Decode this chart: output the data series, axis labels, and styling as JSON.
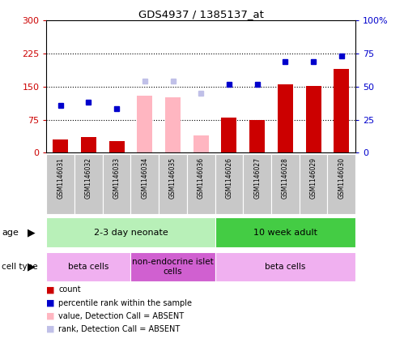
{
  "title": "GDS4937 / 1385137_at",
  "samples": [
    "GSM1146031",
    "GSM1146032",
    "GSM1146033",
    "GSM1146034",
    "GSM1146035",
    "GSM1146036",
    "GSM1146026",
    "GSM1146027",
    "GSM1146028",
    "GSM1146029",
    "GSM1146030"
  ],
  "count_values": [
    30,
    35,
    27,
    null,
    null,
    null,
    80,
    75,
    155,
    152,
    190
  ],
  "count_absent": [
    null,
    null,
    null,
    130,
    125,
    40,
    null,
    null,
    null,
    null,
    null
  ],
  "rank_values": [
    36,
    38,
    33,
    null,
    null,
    null,
    52,
    52,
    69,
    69,
    73
  ],
  "rank_absent": [
    null,
    null,
    null,
    54,
    54,
    45,
    null,
    null,
    null,
    null,
    null
  ],
  "ylim_left": [
    0,
    300
  ],
  "ylim_right": [
    0,
    100
  ],
  "yticks_left": [
    0,
    75,
    150,
    225,
    300
  ],
  "yticks_right": [
    0,
    25,
    50,
    75,
    100
  ],
  "ytick_labels_left": [
    "0",
    "75",
    "150",
    "225",
    "300"
  ],
  "ytick_labels_right": [
    "0",
    "25",
    "50",
    "75",
    "100%"
  ],
  "age_groups": [
    {
      "label": "2-3 day neonate",
      "start": 0,
      "end": 6,
      "color": "#b8f0b8"
    },
    {
      "label": "10 week adult",
      "start": 6,
      "end": 11,
      "color": "#44cc44"
    }
  ],
  "cell_type_groups": [
    {
      "label": "beta cells",
      "start": 0,
      "end": 3,
      "color": "#f0b0f0"
    },
    {
      "label": "non-endocrine islet\ncells",
      "start": 3,
      "end": 6,
      "color": "#d060d0"
    },
    {
      "label": "beta cells",
      "start": 6,
      "end": 11,
      "color": "#f0b0f0"
    }
  ],
  "color_count": "#cc0000",
  "color_rank": "#0000cc",
  "color_count_absent": "#ffb6c1",
  "color_rank_absent": "#c0c0e8",
  "bar_width": 0.55,
  "legend_items": [
    {
      "color": "#cc0000",
      "label": "count"
    },
    {
      "color": "#0000cc",
      "label": "percentile rank within the sample"
    },
    {
      "color": "#ffb6c1",
      "label": "value, Detection Call = ABSENT"
    },
    {
      "color": "#c0c0e8",
      "label": "rank, Detection Call = ABSENT"
    }
  ],
  "sample_col_color": "#c8c8c8",
  "chart_bg": "#ffffff"
}
